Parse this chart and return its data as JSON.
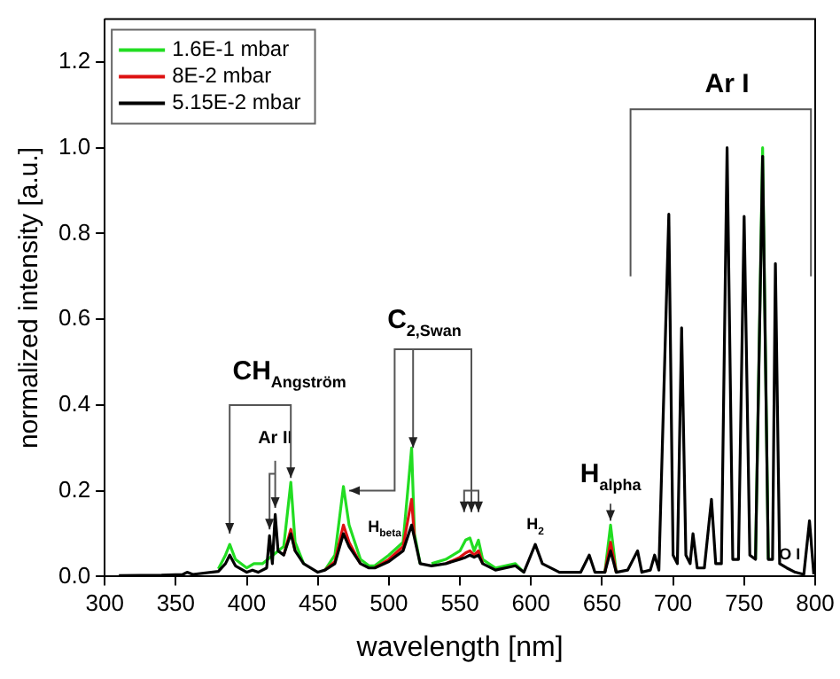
{
  "chart_data": {
    "type": "line",
    "xlabel": "wavelength [nm]",
    "ylabel": "normalized intensity [a.u.]",
    "xlim": [
      300,
      800
    ],
    "ylim": [
      0,
      1.3
    ],
    "xticks": [
      300,
      350,
      400,
      450,
      500,
      550,
      600,
      650,
      700,
      750,
      800
    ],
    "yticks": [
      {
        "value": 0,
        "label": "0.0"
      },
      {
        "value": 0.2,
        "label": "0.2"
      },
      {
        "value": 0.4,
        "label": "0.4"
      },
      {
        "value": 0.6,
        "label": "0.6"
      },
      {
        "value": 0.8,
        "label": "0.8"
      },
      {
        "value": 1,
        "label": "1.0"
      },
      {
        "value": 1.2,
        "label": "1.2"
      }
    ],
    "grid": false,
    "legend": "top left",
    "x": [
      310,
      340,
      355,
      358,
      362,
      380,
      385,
      388,
      392,
      400,
      404,
      408,
      414,
      416,
      418,
      420,
      422,
      426,
      431,
      434,
      440,
      450,
      455,
      462,
      468,
      472,
      480,
      486,
      490,
      500,
      510,
      516,
      518,
      522,
      530,
      540,
      550,
      554,
      557,
      560,
      563,
      566,
      575,
      589,
      595,
      603,
      608,
      620,
      635,
      641,
      645,
      652,
      656,
      660,
      668,
      675,
      678,
      684,
      687,
      690,
      697,
      700,
      703,
      706,
      709,
      712,
      714,
      717,
      722,
      727,
      730,
      734,
      738,
      742,
      746,
      750,
      754,
      758,
      763,
      767,
      770,
      772,
      775,
      780,
      786,
      792,
      796,
      799
    ],
    "series": [
      {
        "name": "1.6E-1 mbar",
        "color": "#22dd22",
        "x": [
          380,
          385,
          388,
          392,
          400,
          405,
          411,
          424,
          426,
          431,
          434,
          440,
          448,
          455,
          462,
          468,
          472,
          480,
          486,
          490,
          500,
          510,
          516,
          518,
          522,
          526,
          530,
          540,
          550,
          554,
          557,
          560,
          563,
          566,
          575,
          589,
          595,
          620,
          652,
          656,
          660,
          700,
          758,
          763,
          767
        ],
        "values": [
          0.018,
          0.05,
          0.075,
          0.04,
          0.02,
          0.03,
          0.03,
          0.065,
          0.07,
          0.22,
          0.08,
          0.03,
          null,
          0.015,
          0.05,
          0.21,
          0.12,
          0.04,
          0.025,
          0.025,
          0.05,
          0.08,
          0.3,
          0.1,
          0.03,
          null,
          0.03,
          0.04,
          0.06,
          0.085,
          0.09,
          0.06,
          0.085,
          0.04,
          0.02,
          0.03,
          0.01,
          null,
          0.01,
          0.12,
          0.01,
          null,
          0.04,
          1.0,
          0.04
        ]
      },
      {
        "name": "8E-2 mbar",
        "color": "#dd1111",
        "x": [
          426,
          431,
          434,
          445,
          455,
          462,
          468,
          472,
          480,
          485,
          490,
          500,
          510,
          516,
          518,
          530,
          540,
          550,
          554,
          557,
          560,
          563,
          566,
          600,
          652,
          656,
          660
        ],
        "values": [
          0.05,
          0.11,
          0.06,
          null,
          0.015,
          0.035,
          0.12,
          0.08,
          0.03,
          null,
          0.02,
          0.04,
          0.07,
          0.18,
          0.09,
          null,
          0.03,
          0.045,
          0.055,
          0.06,
          0.05,
          0.06,
          0.03,
          null,
          0.01,
          0.08,
          0.01
        ]
      },
      {
        "name": "5.15E-2 mbar",
        "color": "#000000",
        "values": [
          0.002,
          0.003,
          0.005,
          0.01,
          0.005,
          0.012,
          0.03,
          0.05,
          0.025,
          0.01,
          0.015,
          0.01,
          0.02,
          0.095,
          0.03,
          0.145,
          0.06,
          0.05,
          0.1,
          0.06,
          0.03,
          0.01,
          0.015,
          0.03,
          0.1,
          0.07,
          0.03,
          0.02,
          0.02,
          0.035,
          0.06,
          0.12,
          0.09,
          0.03,
          0.025,
          0.03,
          0.04,
          0.045,
          0.05,
          0.045,
          0.05,
          0.03,
          0.015,
          0.025,
          0.01,
          0.075,
          0.03,
          0.01,
          0.01,
          0.05,
          0.01,
          0.01,
          0.06,
          0.01,
          0.015,
          0.06,
          0.01,
          0.015,
          0.05,
          0.015,
          0.845,
          0.05,
          0.03,
          0.58,
          0.05,
          0.03,
          0.1,
          0.02,
          0.02,
          0.18,
          0.03,
          0.03,
          1.0,
          0.04,
          0.04,
          0.84,
          0.05,
          0.04,
          0.98,
          0.04,
          0.04,
          0.73,
          0.03,
          0.02,
          0.01,
          0.005,
          0.13,
          0.005
        ]
      }
    ],
    "annotations": [
      "CH$_{Angström}$",
      "Ar II",
      "H$_{beta}$",
      {
        "text": "C$_{2,Swan}$",
        "x": 517,
        "y": 0.3
      },
      "H$_{2}$",
      "H$_{alpha}$",
      "Ar I",
      "O I"
    ]
  }
}
